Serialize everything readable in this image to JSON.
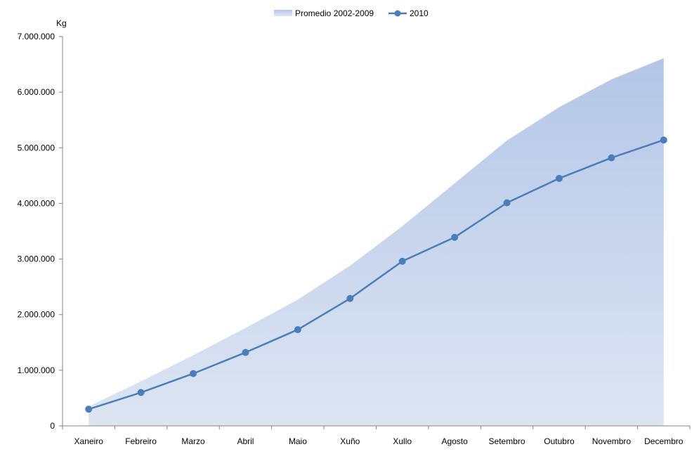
{
  "chart_data": {
    "type": "area",
    "categories": [
      "Xaneiro",
      "Febreiro",
      "Marzo",
      "Abril",
      "Maio",
      "Xuño",
      "Xullo",
      "Agosto",
      "Setembro",
      "Outubro",
      "Novembro",
      "Decembro"
    ],
    "ylabel": "Kg",
    "ylim": [
      0,
      7000000
    ],
    "yticks": [
      0,
      1000000,
      2000000,
      3000000,
      4000000,
      5000000,
      6000000,
      7000000
    ],
    "ytick_labels": [
      "0",
      "1.000.000",
      "2.000.000",
      "3.000.000",
      "4.000.000",
      "5.000.000",
      "6.000.000",
      "7.000.000"
    ],
    "grid": false,
    "legend_position": "top-center",
    "series": [
      {
        "name": "Promedio 2002-2009",
        "type": "area",
        "color": "#b4c6e7",
        "values": [
          350000,
          800000,
          1270000,
          1760000,
          2270000,
          2880000,
          3590000,
          4360000,
          5130000,
          5730000,
          6230000,
          6610000
        ]
      },
      {
        "name": "2010",
        "type": "line",
        "marker": "circle",
        "color": "#4a7ebb",
        "values": [
          300000,
          600000,
          940000,
          1320000,
          1730000,
          2290000,
          2960000,
          3390000,
          4010000,
          4450000,
          4820000,
          5140000
        ]
      }
    ]
  }
}
